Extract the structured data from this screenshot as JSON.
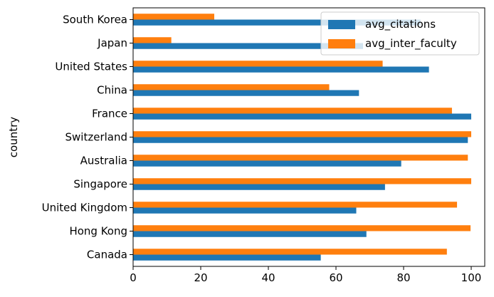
{
  "chart_data": {
    "type": "bar",
    "orientation": "horizontal",
    "categories": [
      "Canada",
      "Hong Kong",
      "United Kingdom",
      "Singapore",
      "Australia",
      "Switzerland",
      "France",
      "China",
      "United States",
      "Japan",
      "South Korea"
    ],
    "series": [
      {
        "name": "avg_citations",
        "color": "#1f77b4",
        "values": [
          55.5,
          69.0,
          66.0,
          74.5,
          79.3,
          99.0,
          100.0,
          66.8,
          87.5,
          68.0,
          85.0
        ]
      },
      {
        "name": "avg_inter_faculty",
        "color": "#ff7f0e",
        "values": [
          92.8,
          99.8,
          95.8,
          100.0,
          99.0,
          100.0,
          94.3,
          58.0,
          73.8,
          11.3,
          24.0
        ]
      }
    ],
    "ylabel": "country",
    "xlabel": "",
    "xlim": [
      0,
      104
    ],
    "xticks": [
      0,
      20,
      40,
      60,
      80,
      100
    ],
    "legend_position": "upper right",
    "grid": false
  }
}
